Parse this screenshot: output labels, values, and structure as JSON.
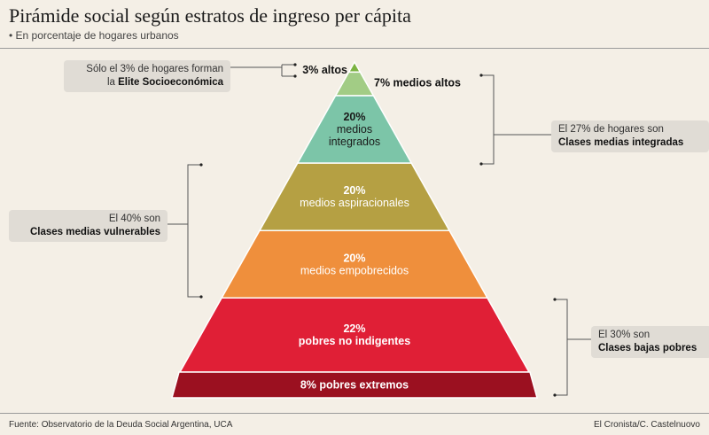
{
  "title": "Pirámide social según estratos de ingreso per cápita",
  "subtitle": "• En porcentaje de hogares urbanos",
  "source": "Fuente: Observatorio de la Deuda Social Argentina, UCA",
  "credit": "El Cronista/C. Castelnuovo",
  "callouts": {
    "elite": {
      "line1": "Sólo el 3% de hogares forman",
      "line2_prefix": "la ",
      "line2_bold": "Elite Socioeconómica"
    },
    "medias_integradas": {
      "line1": "El 27% de hogares son",
      "line2_bold": "Clases medias integradas"
    },
    "vulnerables": {
      "line1": "El 40% son",
      "line2_bold": "Clases medias vulnerables"
    },
    "bajas_pobres": {
      "line1": "El 30% son",
      "line2_bold": "Clases bajas pobres"
    }
  },
  "chart_data": {
    "type": "pyramid",
    "unit": "%",
    "tiers": [
      {
        "label": "altos",
        "value": 3,
        "pct_label": "3%",
        "lines": [
          "3% altos"
        ],
        "color": "#7cb342"
      },
      {
        "label": "medios altos",
        "value": 7,
        "pct_label": "7%",
        "lines": [
          "7% medios altos"
        ],
        "color": "#a2cc85"
      },
      {
        "label": "medios integrados",
        "value": 20,
        "pct_label": "20%",
        "lines": [
          "20%",
          "medios",
          "integrados"
        ],
        "color": "#7cc5a8"
      },
      {
        "label": "medios aspiracionales",
        "value": 20,
        "pct_label": "20%",
        "lines": [
          "20%",
          "medios aspiracionales"
        ],
        "color": "#b5a043"
      },
      {
        "label": "medios empobrecidos",
        "value": 20,
        "pct_label": "20%",
        "lines": [
          "20%",
          "medios empobrecidos"
        ],
        "color": "#ef8f3c"
      },
      {
        "label": "pobres no indigentes",
        "value": 22,
        "pct_label": "22%",
        "lines": [
          "22%",
          "pobres no indigentes"
        ],
        "color": "#e01f36"
      },
      {
        "label": "pobres extremos",
        "value": 8,
        "pct_label": "8%",
        "lines": [
          "8% pobres extremos"
        ],
        "color": "#9b1020"
      }
    ]
  }
}
